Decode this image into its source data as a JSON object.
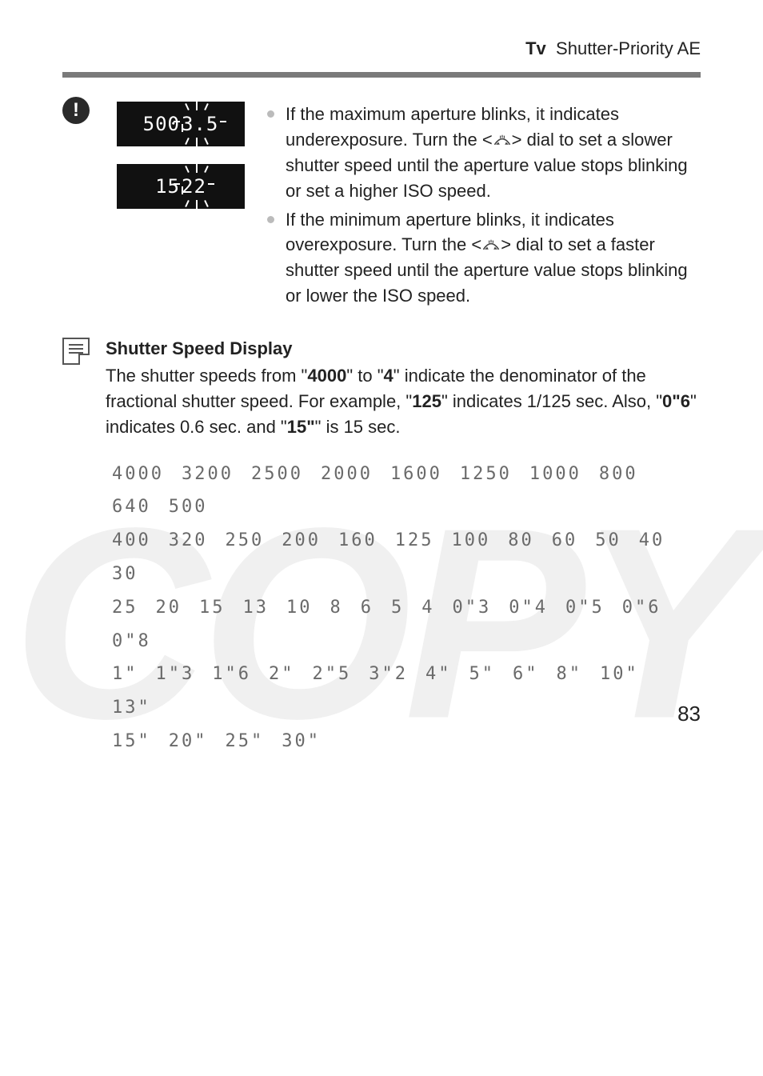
{
  "header": {
    "mode": "Tv",
    "title": "Shutter-Priority AE"
  },
  "lcd": [
    {
      "shutter": "500",
      "aperture": "3.5"
    },
    {
      "shutter": "15",
      "aperture": "22"
    }
  ],
  "bullets": [
    {
      "pre": "If the maximum aperture blinks, it indicates underexposure. Turn the <",
      "post": "> dial to set a slower shutter speed until the aperture value stops blinking or set a higher ISO speed."
    },
    {
      "pre": "If the minimum aperture blinks, it indicates overexposure. Turn the <",
      "post": "> dial to set a faster shutter speed until the aperture value stops blinking or lower the ISO speed."
    }
  ],
  "note": {
    "title": "Shutter Speed Display",
    "p1a": "The shutter speeds from \"",
    "b1": "4000",
    "p1b": "\" to \"",
    "b2": "4",
    "p1c": "\" indicate the denominator of the fractional shutter speed. For example, \"",
    "b3": "125",
    "p1d": "\" indicates 1/125 sec. Also, \"",
    "b4": "0\"6",
    "p1e": "\" indicates 0.6 sec. and \"",
    "b5": "15\"",
    "p1f": "\" is 15 sec."
  },
  "speeds": [
    [
      "4000",
      "3200",
      "2500",
      "2000",
      "1600",
      "1250",
      "1000",
      "800",
      "640",
      "500"
    ],
    [
      "400",
      "320",
      "250",
      "200",
      "160",
      "125",
      "100",
      "80",
      "60",
      "50",
      "40",
      "30"
    ],
    [
      "25",
      "20",
      "15",
      "13",
      "10",
      "8",
      "6",
      "5",
      "4",
      "0\"3",
      "0\"4",
      "0\"5",
      "0\"6",
      "0\"8"
    ],
    [
      "1\"",
      "1\"3",
      "1\"6",
      "2\"",
      "2\"5",
      "3\"2",
      "4\"",
      "5\"",
      "6\"",
      "8\"",
      "10\"",
      "13\""
    ],
    [
      "15\"",
      "20\"",
      "25\"",
      "30\""
    ]
  ],
  "page": "83",
  "colors": {
    "text": "#222222",
    "bullet": "#bbbbbb",
    "divider": "#7a7a7a",
    "lcd_bg": "#111111",
    "lcd_fg": "#ffffff",
    "speeds": "#6a6a6a",
    "watermark": "rgba(0,0,0,0.06)"
  },
  "watermark": "COPY"
}
